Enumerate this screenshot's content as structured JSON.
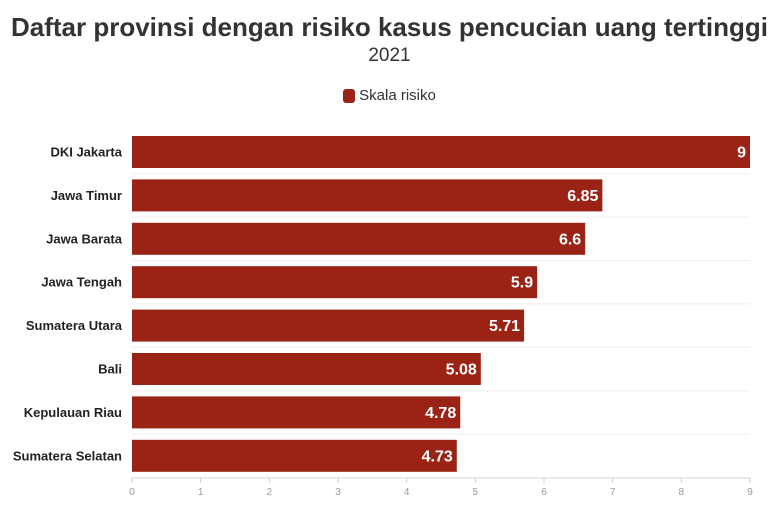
{
  "chart_data": {
    "type": "bar",
    "orientation": "horizontal",
    "title": "Daftar provinsi dengan risiko kasus pencucian uang tertinggi",
    "subtitle": "2021",
    "categories": [
      "DKI Jakarta",
      "Jawa Timur",
      "Jawa Barata",
      "Jawa Tengah",
      "Sumatera Utara",
      "Bali",
      "Kepulauan Riau",
      "Sumatera Selatan"
    ],
    "series": [
      {
        "name": "Skala risiko",
        "values": [
          9,
          6.85,
          6.6,
          5.9,
          5.71,
          5.08,
          4.78,
          4.73
        ],
        "color": "#9b2316"
      }
    ],
    "xlim": [
      0,
      9
    ],
    "xticks": [
      0,
      1,
      2,
      3,
      4,
      5,
      6,
      7,
      8,
      9
    ],
    "legend_position": "top-center",
    "grid": true
  }
}
